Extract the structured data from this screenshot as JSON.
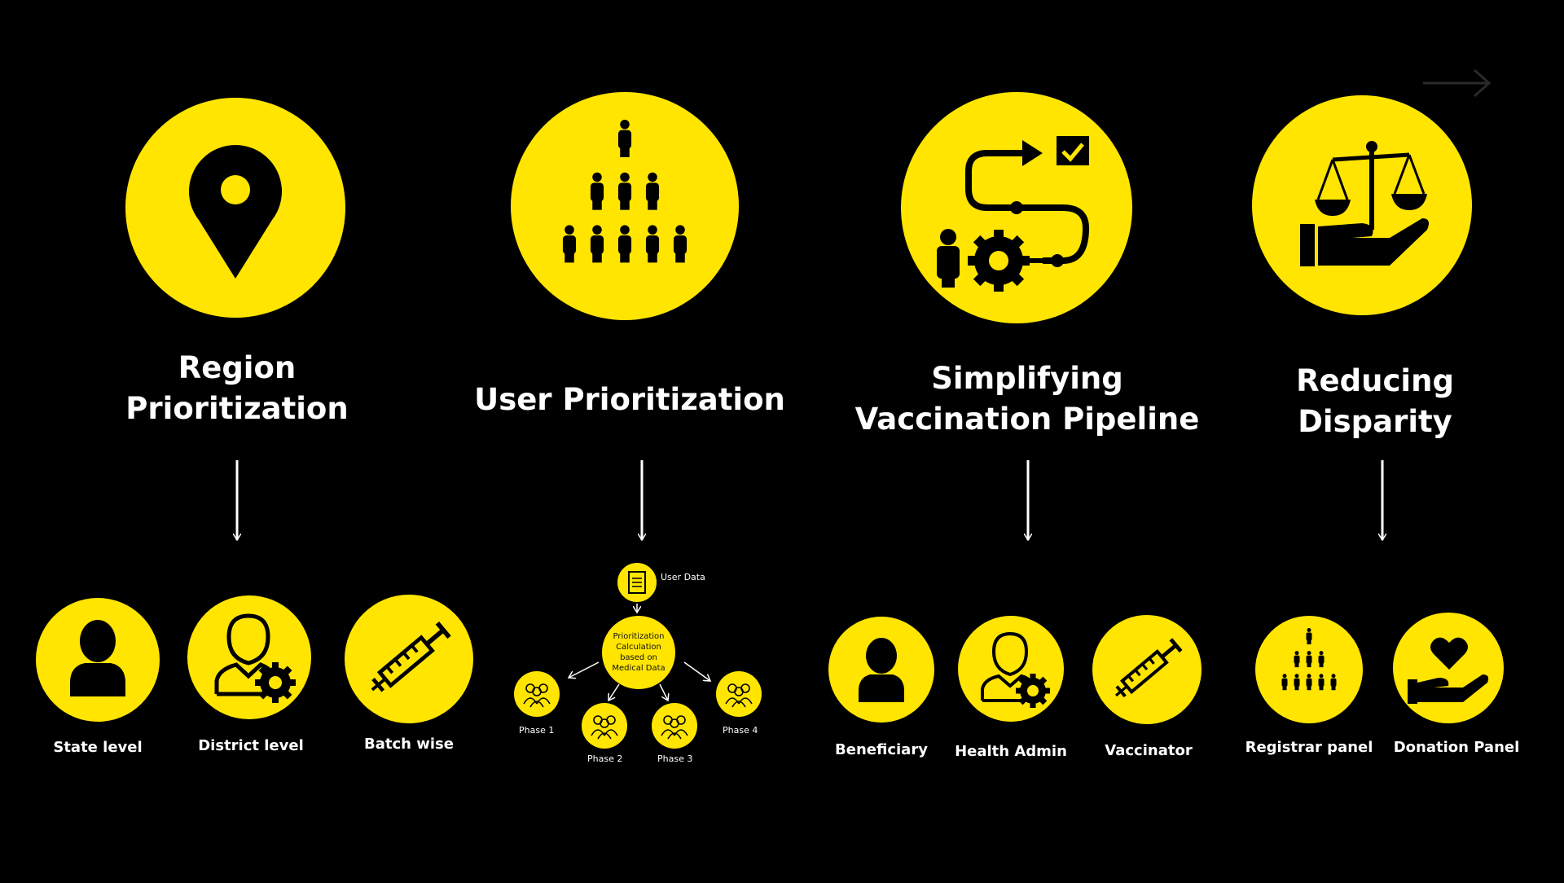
{
  "columns": [
    {
      "title_line1": "Region",
      "title_line2": "Prioritization",
      "icon": "location-pin-icon",
      "children": [
        {
          "label": "State level",
          "icon": "person-icon"
        },
        {
          "label": "District level",
          "icon": "admin-gear-icon"
        },
        {
          "label": "Batch wise",
          "icon": "syringe-icon"
        }
      ]
    },
    {
      "title_line1": "User Prioritization",
      "icon": "people-pyramid-icon",
      "flow": {
        "source_label": "User Data",
        "center_lines": [
          "Prioritization",
          "Calculation",
          "based on",
          "Medical Data"
        ],
        "phases": [
          "Phase 1",
          "Phase 2",
          "Phase 3",
          "Phase 4"
        ]
      }
    },
    {
      "title_line1": "Simplifying",
      "title_line2": "Vaccination Pipeline",
      "icon": "pipeline-process-icon",
      "children": [
        {
          "label": "Beneficiary",
          "icon": "person-icon"
        },
        {
          "label": "Health Admin",
          "icon": "admin-gear-icon"
        },
        {
          "label": "Vaccinator",
          "icon": "syringe-icon"
        }
      ]
    },
    {
      "title_line1": "Reducing",
      "title_line2": "Disparity",
      "icon": "scales-hand-icon",
      "children": [
        {
          "label": "Registrar panel",
          "icon": "people-pyramid-icon"
        },
        {
          "label": "Donation Panel",
          "icon": "heart-hand-icon"
        }
      ]
    }
  ],
  "colors": {
    "accent": "#FFE500",
    "background": "#000000",
    "text": "#FFFFFF",
    "icon": "#000000"
  }
}
